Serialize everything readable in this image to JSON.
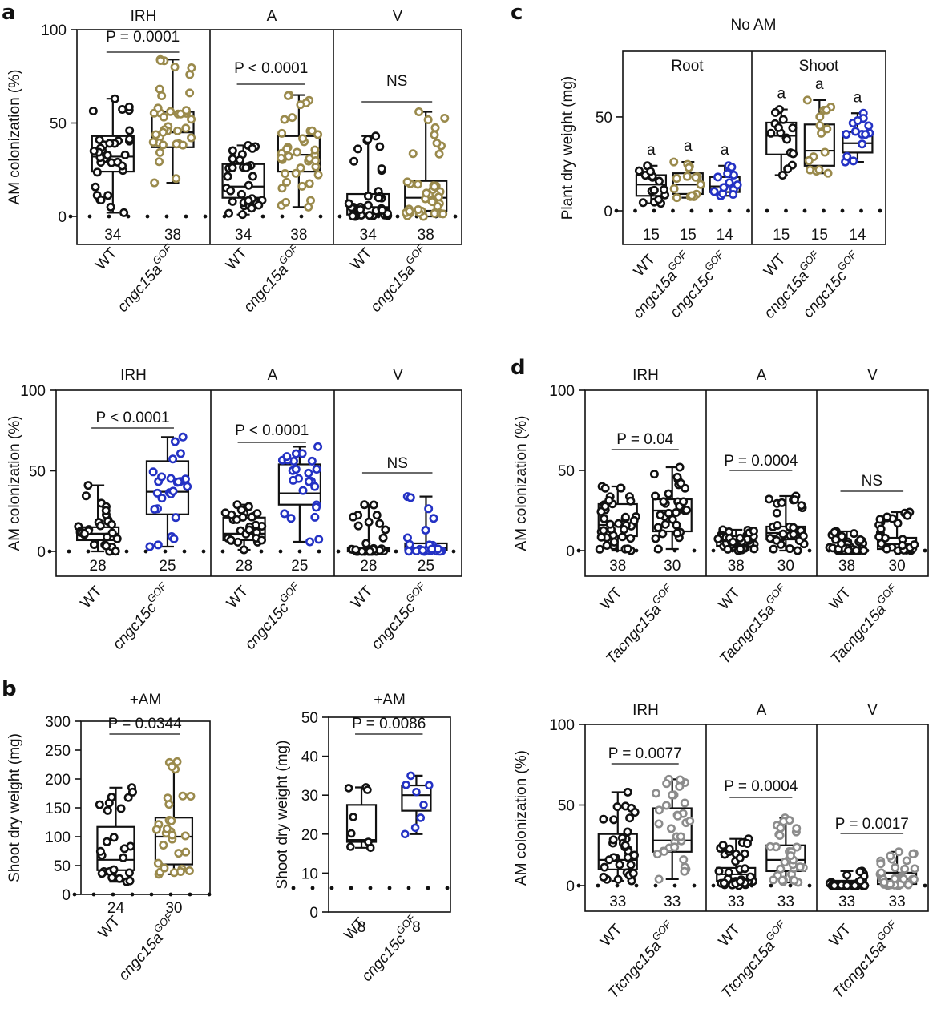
{
  "panel_labels": [
    "a",
    "b",
    "c",
    "d"
  ],
  "colors": {
    "wt": "#111111",
    "olive": "#9a8a4c",
    "blue": "#2432c4",
    "gray": "#8c8c8c",
    "axis": "#111111"
  },
  "chart_data": [
    {
      "id": "a_top",
      "type": "boxplot",
      "panel": "a",
      "ylabel": "AM colonization (%)",
      "ylim": [
        0,
        100
      ],
      "yticks": [
        "0",
        "50",
        "100"
      ],
      "facets": [
        {
          "title": "IRH",
          "stat": "P = 0.0001",
          "groups": [
            {
              "name": "WT",
              "sup": "",
              "color": "wt",
              "n": "34",
              "min": 2,
              "q1": 24,
              "median": 32,
              "q3": 43,
              "max": 63
            },
            {
              "name": "cngc15a",
              "sup": "GOF",
              "color": "olive",
              "n": "38",
              "min": 18,
              "q1": 37,
              "median": 45,
              "q3": 56,
              "max": 84
            }
          ]
        },
        {
          "title": "A",
          "stat": "P < 0.0001",
          "groups": [
            {
              "name": "WT",
              "sup": "",
              "color": "wt",
              "n": "34",
              "min": 1,
              "q1": 10,
              "median": 16,
              "q3": 28,
              "max": 38
            },
            {
              "name": "cngc15a",
              "sup": "GOF",
              "color": "olive",
              "n": "38",
              "min": 5,
              "q1": 24,
              "median": 33,
              "q3": 43,
              "max": 65
            }
          ]
        },
        {
          "title": "V",
          "stat": "NS",
          "groups": [
            {
              "name": "WT",
              "sup": "",
              "color": "wt",
              "n": "34",
              "min": 0,
              "q1": 1,
              "median": 5,
              "q3": 12,
              "max": 43
            },
            {
              "name": "cngc15a",
              "sup": "GOF",
              "color": "olive",
              "n": "38",
              "min": 0,
              "q1": 3,
              "median": 10,
              "q3": 19,
              "max": 56
            }
          ]
        }
      ]
    },
    {
      "id": "a_bottom",
      "type": "boxplot",
      "panel": "a",
      "ylabel": "AM colonization (%)",
      "ylim": [
        0,
        100
      ],
      "yticks": [
        "0",
        "50",
        "100"
      ],
      "facets": [
        {
          "title": "IRH",
          "stat": "P < 0.0001",
          "groups": [
            {
              "name": "WT",
              "sup": "",
              "color": "wt",
              "n": "28",
              "min": 0,
              "q1": 7,
              "median": 11,
              "q3": 15,
              "max": 41
            },
            {
              "name": "cngc15c",
              "sup": "GOF",
              "color": "blue",
              "n": "25",
              "min": 3,
              "q1": 23,
              "median": 37,
              "q3": 56,
              "max": 71
            }
          ]
        },
        {
          "title": "A",
          "stat": "P < 0.0001",
          "groups": [
            {
              "name": "WT",
              "sup": "",
              "color": "wt",
              "n": "28",
              "min": 1,
              "q1": 7,
              "median": 11,
              "q3": 21,
              "max": 29
            },
            {
              "name": "cngc15c",
              "sup": "GOF",
              "color": "blue",
              "n": "25",
              "min": 6,
              "q1": 29,
              "median": 36,
              "q3": 54,
              "max": 65
            }
          ]
        },
        {
          "title": "V",
          "stat": "NS",
          "groups": [
            {
              "name": "WT",
              "sup": "",
              "color": "wt",
              "n": "28",
              "min": 0,
              "q1": 0,
              "median": 1,
              "q3": 2,
              "max": 29
            },
            {
              "name": "cngc15c",
              "sup": "GOF",
              "color": "blue",
              "n": "25",
              "min": 0,
              "q1": 1,
              "median": 2,
              "q3": 5,
              "max": 34
            }
          ]
        }
      ]
    },
    {
      "id": "b_left",
      "type": "boxplot",
      "panel": "b",
      "ylabel": "Shoot dry weight (mg)",
      "ylim": [
        0,
        300
      ],
      "yticks": [
        "0",
        "50",
        "100",
        "150",
        "200",
        "250",
        "300"
      ],
      "facets": [
        {
          "title": "+AM",
          "stat": "P = 0.0344",
          "groups": [
            {
              "name": "WT",
              "sup": "",
              "color": "wt",
              "n": "24",
              "min": 22,
              "q1": 42,
              "median": 60,
              "q3": 117,
              "max": 185
            },
            {
              "name": "cngc15a",
              "sup": "GOF",
              "color": "olive",
              "n": "30",
              "min": 35,
              "q1": 52,
              "median": 100,
              "q3": 133,
              "max": 230
            }
          ]
        }
      ]
    },
    {
      "id": "b_right",
      "type": "boxplot",
      "panel": "b",
      "ylabel": "Shoot dry weight (mg)",
      "ylim": [
        0,
        50
      ],
      "yticks": [
        "0",
        "10",
        "20",
        "30",
        "40",
        "50"
      ],
      "facets": [
        {
          "title": "+AM",
          "stat": "P = 0.0086",
          "groups": [
            {
              "name": "WT",
              "sup": "",
              "color": "wt",
              "n": "8",
              "min": 16.5,
              "q1": 18,
              "median": 18.5,
              "q3": 27.5,
              "max": 32
            },
            {
              "name": "cngc15c",
              "sup": "GOF",
              "color": "blue",
              "n": "8",
              "min": 20,
              "q1": 26,
              "median": 30,
              "q3": 32.5,
              "max": 35
            }
          ]
        }
      ]
    },
    {
      "id": "c",
      "type": "boxplot",
      "panel": "c",
      "title": "No AM",
      "ylabel": "Plant dry weight (mg)",
      "ylim": [
        0,
        85
      ],
      "yticks": [
        "0",
        "50"
      ],
      "facets": [
        {
          "title": "Root",
          "stat": "",
          "groups": [
            {
              "name": "WT",
              "sup": "",
              "color": "wt",
              "n": "15",
              "letter": "a",
              "min": 4,
              "q1": 8,
              "median": 14,
              "q3": 19,
              "max": 24
            },
            {
              "name": "cngc15a",
              "sup": "GOF",
              "color": "olive",
              "n": "15",
              "letter": "a",
              "min": 7,
              "q1": 9,
              "median": 14,
              "q3": 20,
              "max": 26
            },
            {
              "name": "cngc15c",
              "sup": "GOF",
              "color": "blue",
              "n": "14",
              "letter": "a",
              "min": 8,
              "q1": 10,
              "median": 13,
              "q3": 18,
              "max": 24
            }
          ]
        },
        {
          "title": "Shoot",
          "stat": "",
          "groups": [
            {
              "name": "WT",
              "sup": "",
              "color": "wt",
              "n": "15",
              "letter": "a",
              "min": 19,
              "q1": 30,
              "median": 40,
              "q3": 47,
              "max": 54
            },
            {
              "name": "cngc15a",
              "sup": "GOF",
              "color": "olive",
              "n": "15",
              "letter": "a",
              "min": 20,
              "q1": 24,
              "median": 32,
              "q3": 46,
              "max": 59
            },
            {
              "name": "cngc15c",
              "sup": "GOF",
              "color": "blue",
              "n": "14",
              "letter": "a",
              "min": 26,
              "q1": 31,
              "median": 36,
              "q3": 42,
              "max": 52
            }
          ]
        }
      ]
    },
    {
      "id": "d_top",
      "type": "boxplot",
      "panel": "d",
      "ylabel": "AM colonization (%)",
      "ylim": [
        0,
        100
      ],
      "yticks": [
        "0",
        "50",
        "100"
      ],
      "facets": [
        {
          "title": "IRH",
          "stat": "P = 0.04",
          "groups": [
            {
              "name": "WT",
              "sup": "",
              "color": "wt",
              "n": "38",
              "min": 0,
              "q1": 9,
              "median": 16,
              "q3": 29,
              "max": 40
            },
            {
              "name": "Tacngc15a",
              "sup": "GOF",
              "color": "wt",
              "n": "30",
              "min": 1,
              "q1": 12,
              "median": 25,
              "q3": 32,
              "max": 52
            }
          ]
        },
        {
          "title": "A",
          "stat": "P = 0.0004",
          "groups": [
            {
              "name": "WT",
              "sup": "",
              "color": "wt",
              "n": "38",
              "min": 0,
              "q1": 3,
              "median": 6,
              "q3": 9,
              "max": 13
            },
            {
              "name": "Tacngc15a",
              "sup": "GOF",
              "color": "wt",
              "n": "30",
              "min": 0,
              "q1": 7,
              "median": 11,
              "q3": 15,
              "max": 34
            }
          ]
        },
        {
          "title": "V",
          "stat": "NS",
          "groups": [
            {
              "name": "WT",
              "sup": "",
              "color": "wt",
              "n": "38",
              "min": 0,
              "q1": 0,
              "median": 1,
              "q3": 2,
              "max": 12
            },
            {
              "name": "Tacngc15a",
              "sup": "GOF",
              "color": "wt",
              "n": "30",
              "min": 0,
              "q1": 1,
              "median": 4,
              "q3": 8,
              "max": 24
            }
          ]
        }
      ]
    },
    {
      "id": "d_bottom",
      "type": "boxplot",
      "panel": "d",
      "ylabel": "AM colonization (%)",
      "ylim": [
        0,
        100
      ],
      "yticks": [
        "0",
        "50",
        "100"
      ],
      "facets": [
        {
          "title": "IRH",
          "stat": "P = 0.0077",
          "groups": [
            {
              "name": "WT",
              "sup": "",
              "color": "wt",
              "n": "33",
              "min": 3,
              "q1": 10,
              "median": 16,
              "q3": 32,
              "max": 58
            },
            {
              "name": "Ttcngc15a",
              "sup": "GOF",
              "color": "gray",
              "n": "33",
              "min": 4,
              "q1": 21,
              "median": 28,
              "q3": 48,
              "max": 66
            }
          ]
        },
        {
          "title": "A",
          "stat": "P = 0.0004",
          "groups": [
            {
              "name": "WT",
              "sup": "",
              "color": "wt",
              "n": "33",
              "min": 0,
              "q1": 3,
              "median": 7,
              "q3": 11,
              "max": 29
            },
            {
              "name": "Ttcngc15a",
              "sup": "GOF",
              "color": "gray",
              "n": "33",
              "min": 2,
              "q1": 9,
              "median": 16,
              "q3": 25,
              "max": 42
            }
          ]
        },
        {
          "title": "V",
          "stat": "P = 0.0017",
          "groups": [
            {
              "name": "WT",
              "sup": "",
              "color": "wt",
              "n": "33",
              "min": 0,
              "q1": 0,
              "median": 1,
              "q3": 3,
              "max": 9
            },
            {
              "name": "Ttcngc15a",
              "sup": "GOF",
              "color": "gray",
              "n": "33",
              "min": 0,
              "q1": 1,
              "median": 4,
              "q3": 8,
              "max": 21
            }
          ]
        }
      ]
    }
  ]
}
